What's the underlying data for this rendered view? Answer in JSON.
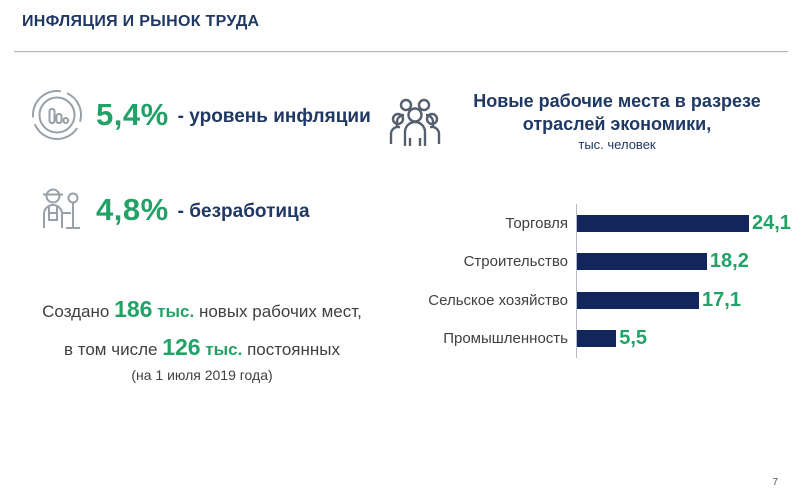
{
  "header": {
    "title": "ИНФЛЯЦИЯ И РЫНОК ТРУДА"
  },
  "stats": {
    "inflation": {
      "value": "5,4%",
      "label": "- уровень инфляции",
      "icon": "coin-bar-chart-icon"
    },
    "unemployment": {
      "value": "4,8%",
      "label": "- безработица",
      "icon": "worker-with-shovel-icon"
    }
  },
  "created": {
    "line1": {
      "prefix": "Создано",
      "value": "186",
      "unit": "тыс.",
      "suffix": "новых рабочих мест,"
    },
    "line2": {
      "prefix": "в том числе",
      "value": "126",
      "unit": "тыс.",
      "suffix": "постоянных"
    },
    "line3": "(на 1 июля 2019 года)"
  },
  "chart_header": {
    "title_line1": "Новые рабочие места в разрезе",
    "title_line2": "отраслей экономики,",
    "subtitle": "тыс. человек",
    "icon": "people-group-icon"
  },
  "chart_data": {
    "type": "bar",
    "orientation": "horizontal",
    "title": "Новые рабочие места в разрезе отраслей экономики",
    "unit": "тыс. человек",
    "categories": [
      "Торговля",
      "Строительство",
      "Сельское хозяйство",
      "Промышленность"
    ],
    "values": [
      24.1,
      18.2,
      17.1,
      5.5
    ],
    "value_labels": [
      "24,1",
      "18,2",
      "17,1",
      "5,5"
    ],
    "xlim": [
      0,
      24.1
    ],
    "grid": false,
    "bar_color": "#13265c",
    "value_label_color": "#22a267"
  },
  "footer": {
    "page_number": "7"
  },
  "colors": {
    "accent_green": "#22a267",
    "navy_text": "#1f3864",
    "bar_navy": "#13265c",
    "body_text": "#404040",
    "divider": "#b5b5b5"
  }
}
